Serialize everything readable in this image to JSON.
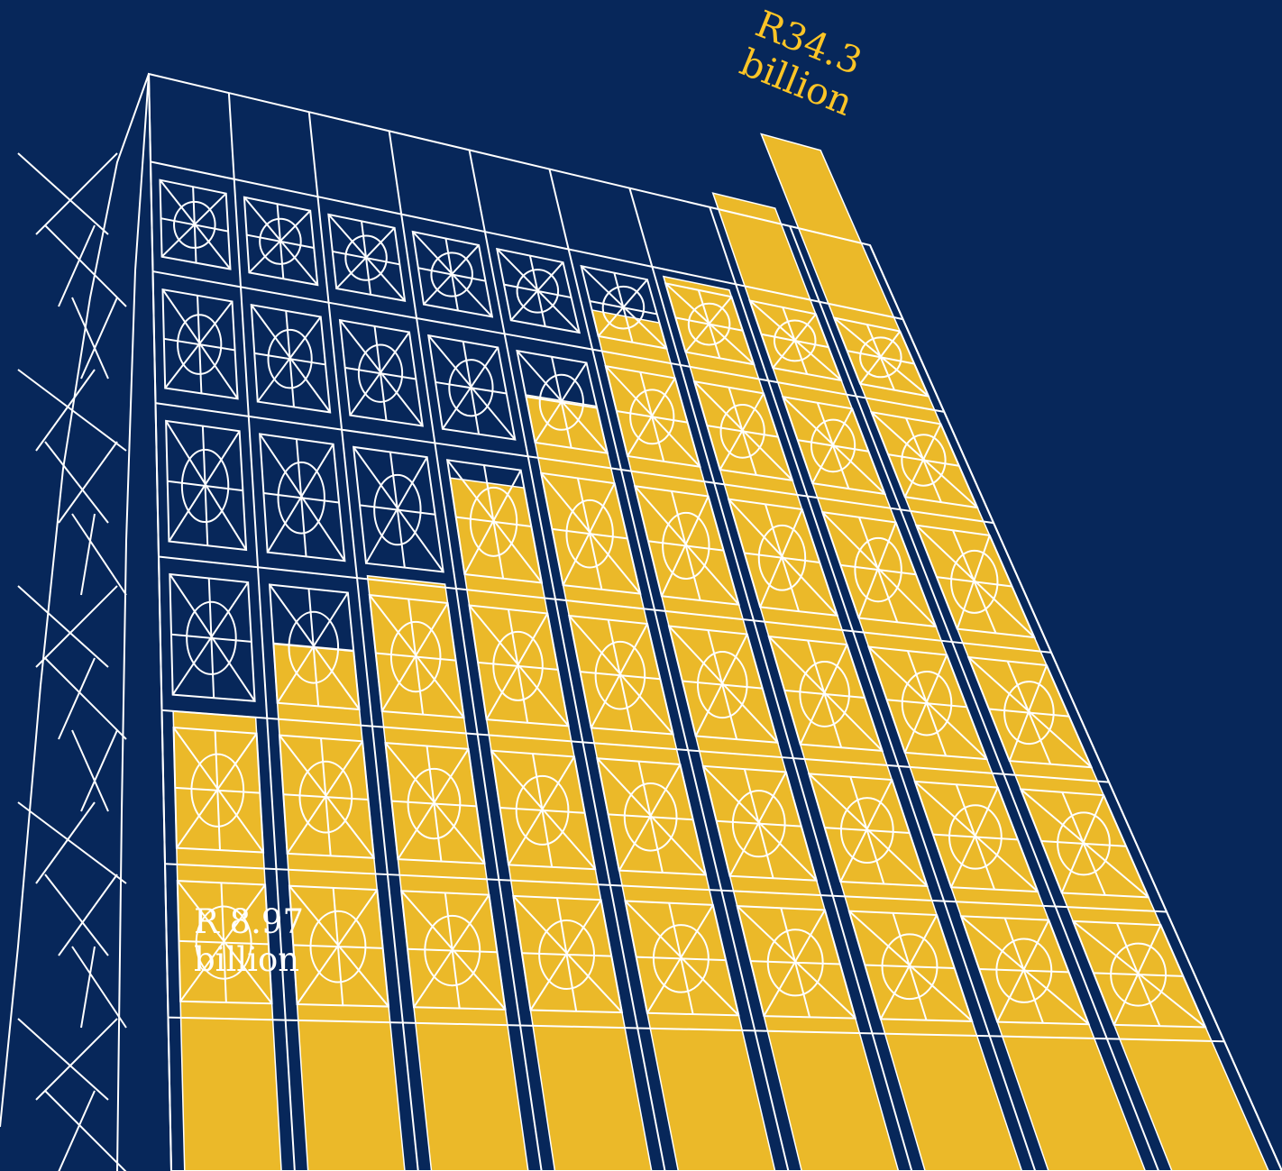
{
  "colors": {
    "background": "#07275a",
    "bar": "#fdc526",
    "line": "#ffffff"
  },
  "labels": {
    "first_value": "R 8.97",
    "first_unit": "billion",
    "last_value": "R34.3",
    "last_unit": "billion"
  },
  "chart_data": {
    "type": "bar",
    "title": "",
    "xlabel": "",
    "ylabel": "",
    "categories": [
      "",
      "",
      "",
      "",
      "",
      "",
      "",
      "",
      ""
    ],
    "series": [
      {
        "values": [
          8.97,
          11.6,
          14.3,
          18.2,
          21.7,
          25.4,
          27.3,
          31.2,
          34.3
        ]
      }
    ],
    "value_labels": [
      "R 8.97 billion",
      "",
      "",
      "",
      "",
      "",
      "",
      "",
      "R34.3 billion"
    ],
    "grid": false,
    "legend": "none"
  }
}
